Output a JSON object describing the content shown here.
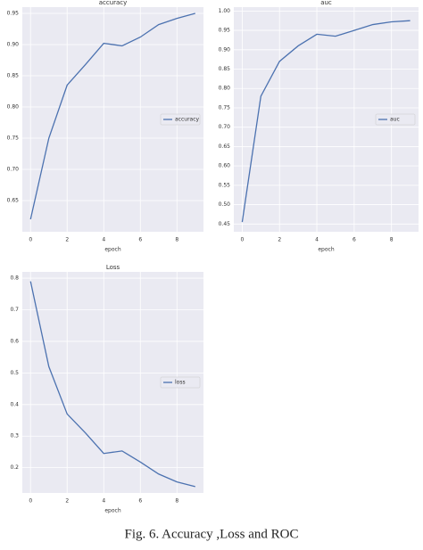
{
  "chart_data": [
    {
      "type": "line",
      "title": "accuracy",
      "xlabel": "epoch",
      "x": [
        0,
        1,
        2,
        3,
        4,
        5,
        6,
        7,
        8,
        9
      ],
      "series": [
        {
          "name": "accuracy",
          "color": "#4c72b0",
          "values": [
            0.62,
            0.75,
            0.835,
            0.868,
            0.902,
            0.898,
            0.912,
            0.932,
            0.942,
            0.95
          ]
        }
      ],
      "xlim": [
        -0.45,
        9.45
      ],
      "xticks": [
        0,
        2,
        4,
        6,
        8
      ],
      "ylim": [
        0.6,
        0.96
      ],
      "yticks": [
        0.65,
        {
          "value": 0.7,
          "label": "0.70"
        },
        0.75,
        {
          "value": 0.8,
          "label": "0.80"
        },
        0.85,
        {
          "value": 0.9,
          "label": "0.90"
        },
        0.95
      ],
      "grid": true,
      "legend": "center right",
      "background": "#eaeaf2"
    },
    {
      "type": "line",
      "title": "auc",
      "xlabel": "epoch",
      "x": [
        0,
        1,
        2,
        3,
        4,
        5,
        6,
        7,
        8,
        9
      ],
      "series": [
        {
          "name": "auc",
          "color": "#4c72b0",
          "values": [
            0.455,
            0.78,
            0.87,
            0.91,
            0.94,
            0.935,
            0.95,
            0.965,
            0.972,
            0.975
          ]
        }
      ],
      "xlim": [
        -0.45,
        9.45
      ],
      "xticks": [
        0,
        2,
        4,
        6,
        8
      ],
      "ylim": [
        0.43,
        1.01
      ],
      "yticks": [
        0.45,
        {
          "value": 0.5,
          "label": "0.50"
        },
        0.55,
        {
          "value": 0.6,
          "label": "0.60"
        },
        0.65,
        {
          "value": 0.7,
          "label": "0.70"
        },
        0.75,
        {
          "value": 0.8,
          "label": "0.80"
        },
        0.85,
        {
          "value": 0.9,
          "label": "0.90"
        },
        0.95,
        {
          "value": 1,
          "label": "1.00"
        }
      ],
      "grid": true,
      "legend": "center right",
      "background": "#eaeaf2"
    },
    {
      "type": "line",
      "title": "Loss",
      "xlabel": "epoch",
      "x": [
        0,
        1,
        2,
        3,
        4,
        5,
        6,
        7,
        8,
        9
      ],
      "series": [
        {
          "name": "loss",
          "color": "#4c72b0",
          "values": [
            0.79,
            0.52,
            0.37,
            0.31,
            0.245,
            0.253,
            0.218,
            0.18,
            0.155,
            0.14
          ]
        }
      ],
      "xlim": [
        -0.45,
        9.45
      ],
      "xticks": [
        0,
        2,
        4,
        6,
        8
      ],
      "ylim": [
        0.12,
        0.82
      ],
      "yticks": [
        0.2,
        0.3,
        0.4,
        0.5,
        0.6,
        0.7,
        0.8
      ],
      "grid": true,
      "legend": "center right",
      "background": "#eaeaf2"
    }
  ],
  "caption": "Fig. 6.   Accuracy ,Loss and ROC"
}
